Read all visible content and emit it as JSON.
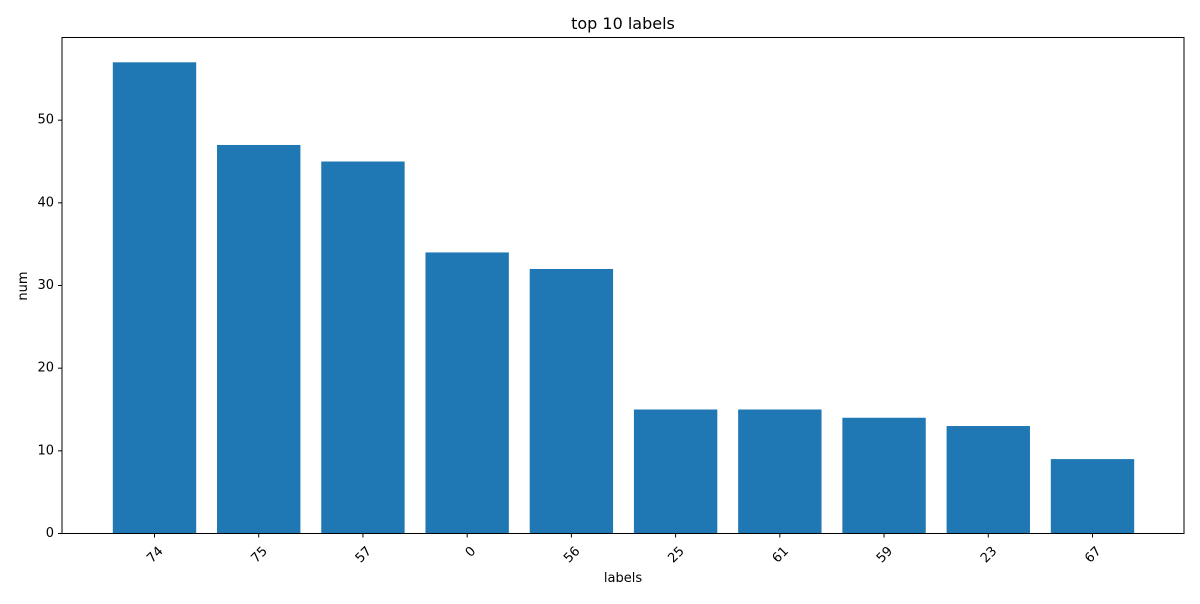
{
  "chart_data": {
    "type": "bar",
    "title": "top 10 labels",
    "xlabel": "labels",
    "ylabel": "num",
    "categories": [
      "74",
      "75",
      "57",
      "0",
      "56",
      "25",
      "61",
      "59",
      "23",
      "67"
    ],
    "values": [
      57,
      47,
      45,
      34,
      32,
      15,
      15,
      14,
      13,
      9
    ],
    "ylim": [
      0,
      60
    ],
    "yticks": [
      0,
      10,
      20,
      30,
      40,
      50
    ],
    "bar_color": "#1f77b4",
    "grid": false,
    "legend": "none"
  }
}
